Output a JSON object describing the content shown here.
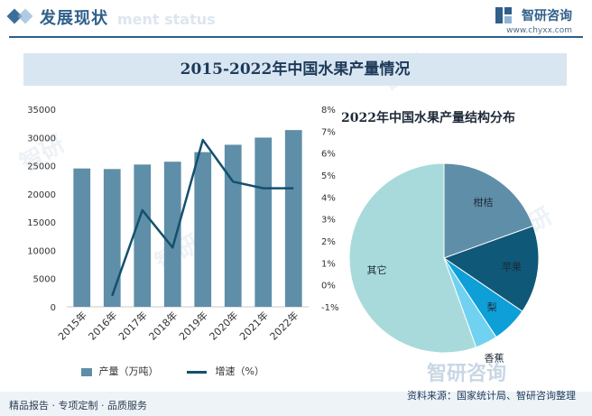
{
  "header": {
    "title": "发展现状",
    "ghost_text": "ment status",
    "brand_name": "智研咨询",
    "brand_url": "www.chyxx.com",
    "brand_color": "#2f5f8a"
  },
  "banner": {
    "title": "2015-2022年中国水果产量情况"
  },
  "bottom_watermark": "智研咨询",
  "footer": {
    "left_text": "精品报告 · 专项定制 · 品质服务",
    "source_text": "资料来源：国家统计局、智研咨询整理"
  },
  "chart_data": [
    {
      "type": "bar",
      "categories": [
        "2015年",
        "2016年",
        "2017年",
        "2018年",
        "2019年",
        "2020年",
        "2021年",
        "2022年"
      ],
      "series": [
        {
          "name": "产量（万吨）",
          "type": "bar",
          "axis": "left",
          "color": "#5f8ea8",
          "values": [
            24500,
            24400,
            25200,
            25700,
            27400,
            28700,
            29970,
            31300
          ]
        },
        {
          "name": "增速（%）",
          "type": "line",
          "axis": "right",
          "color": "#14506e",
          "values": [
            null,
            -0.5,
            3.4,
            1.7,
            6.6,
            4.7,
            4.4,
            4.4
          ]
        }
      ],
      "ylim": [
        0,
        35000
      ],
      "yticks": [
        "0",
        "5000",
        "10000",
        "15000",
        "20000",
        "25000",
        "30000",
        "35000"
      ],
      "y2lim": [
        -1,
        8
      ],
      "y2ticks": [
        "-1%",
        "0%",
        "1%",
        "2%",
        "3%",
        "4%",
        "5%",
        "6%",
        "7%",
        "8%"
      ],
      "grid": false,
      "legend": "bottom"
    },
    {
      "type": "pie",
      "title": "2022年中国水果产量结构分布",
      "slices": [
        {
          "label": "柑桔",
          "value": 19.5,
          "color": "#5f8ea8"
        },
        {
          "label": "苹果",
          "value": 15.0,
          "color": "#0f5878"
        },
        {
          "label": "梨",
          "value": 6.2,
          "color": "#0f9fd8"
        },
        {
          "label": "香蕉",
          "value": 3.8,
          "color": "#70d2f0"
        },
        {
          "label": "其它",
          "value": 55.5,
          "color": "#a8dadb"
        }
      ]
    }
  ]
}
